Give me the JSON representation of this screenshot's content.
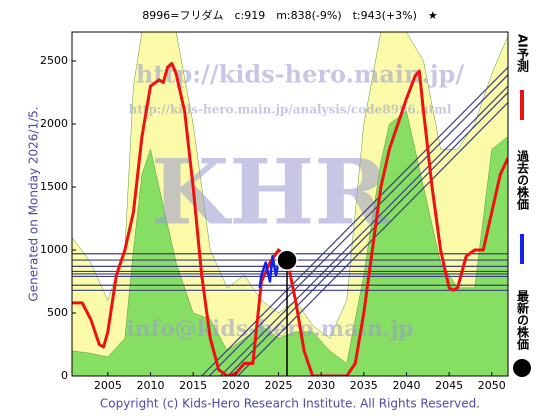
{
  "chart_data": {
    "type": "line",
    "title": "8996=フリダム　c:919　m:838(-9%)　t:943(+3%)　★",
    "y_label": "Generated on Monday 2026/1/5.",
    "footer": "Copyright (c) Kids-Hero Research Institute. All Rights Reserved.",
    "watermarks": [
      "http://kids-hero.main.jp/",
      "http://kids-hero.main.jp/analysis/code8996.html",
      "KHR",
      "info@kids-hero.main.jp"
    ],
    "xlim": [
      2000.8,
      2051.9
    ],
    "ylim": [
      0,
      2730
    ],
    "xticks": [
      2005,
      2010,
      2015,
      2020,
      2025,
      2030,
      2035,
      2040,
      2045,
      2050
    ],
    "yticks": [
      0,
      500,
      1000,
      1500,
      2000,
      2500
    ],
    "areas": [
      {
        "color": "#fafaa8",
        "x": [
          2000.8,
          2003,
          2005,
          2007,
          2008,
          2009,
          2010,
          2011,
          2012,
          2013,
          2015,
          2017,
          2019,
          2021,
          2023,
          2025,
          2027,
          2029,
          2031,
          2033,
          2035,
          2037,
          2038,
          2040,
          2042,
          2044,
          2046,
          2048,
          2050,
          2051.9
        ],
        "values": [
          1100,
          900,
          600,
          1000,
          2300,
          2730,
          2730,
          2730,
          2730,
          2730,
          2000,
          1000,
          700,
          800,
          600,
          500,
          600,
          400,
          300,
          600,
          2000,
          2730,
          2730,
          2730,
          2500,
          1800,
          1800,
          2000,
          2400,
          2700
        ]
      },
      {
        "color": "#86de62",
        "x": [
          2000.8,
          2003,
          2005,
          2007,
          2008,
          2009,
          2010,
          2011,
          2012,
          2013,
          2015,
          2017,
          2019,
          2021,
          2023,
          2025,
          2027,
          2029,
          2031,
          2033,
          2035,
          2037,
          2038,
          2040,
          2042,
          2044,
          2046,
          2048,
          2050,
          2051.9
        ],
        "values": [
          200,
          180,
          150,
          300,
          1000,
          1600,
          1800,
          1500,
          1200,
          900,
          500,
          450,
          200,
          300,
          400,
          300,
          350,
          350,
          200,
          100,
          800,
          1700,
          2000,
          2100,
          1500,
          900,
          700,
          700,
          1800,
          1900
        ]
      }
    ],
    "hlines": {
      "color": "#3a3f7f",
      "values": [
        680,
        720,
        790,
        810,
        830,
        870,
        920,
        970
      ]
    },
    "trend_lines": {
      "color": "#3a3f7f",
      "x": [
        2016,
        2051.9
      ],
      "series": [
        {
          "values": [
            0,
            2450
          ]
        },
        {
          "values": [
            -60,
            2390
          ]
        },
        {
          "values": [
            -150,
            2300
          ]
        },
        {
          "values": [
            -210,
            2250
          ]
        },
        {
          "values": [
            -290,
            2170
          ]
        }
      ]
    },
    "series": [
      {
        "name": "AI予測",
        "color": "#ee1111",
        "x": [
          2000.8,
          2002,
          2003,
          2004,
          2004.5,
          2005,
          2006,
          2007,
          2008,
          2009,
          2010,
          2011,
          2011.5,
          2012,
          2012.5,
          2013,
          2014,
          2015,
          2016,
          2017,
          2018,
          2019,
          2020,
          2021,
          2022,
          2023,
          2024,
          2025,
          2026,
          2027,
          2028,
          2029,
          2030,
          2033,
          2034,
          2035,
          2036,
          2037,
          2038,
          2039,
          2040,
          2041,
          2041.5,
          2042,
          2043,
          2044,
          2045,
          2045.5,
          2046,
          2047,
          2048,
          2049,
          2050,
          2051,
          2051.9
        ],
        "values": [
          580,
          580,
          450,
          250,
          230,
          350,
          800,
          1000,
          1300,
          1900,
          2300,
          2350,
          2330,
          2450,
          2480,
          2400,
          2100,
          1500,
          800,
          300,
          50,
          0,
          20,
          100,
          100,
          750,
          900,
          1000,
          930,
          600,
          200,
          0,
          0,
          0,
          100,
          500,
          1000,
          1500,
          1800,
          2000,
          2200,
          2380,
          2420,
          2100,
          1500,
          1000,
          700,
          680,
          700,
          950,
          1000,
          1000,
          1300,
          1600,
          1730
        ]
      },
      {
        "name": "過去の株価",
        "color": "#1122ee",
        "x": [
          2022.8,
          2023,
          2023.5,
          2024,
          2024.3,
          2024.7,
          2025,
          2025.5,
          2026
        ],
        "values": [
          700,
          800,
          900,
          750,
          950,
          800,
          900,
          850,
          919
        ]
      },
      {
        "name": "最新の株価",
        "color": "#000000",
        "x": [
          2026
        ],
        "values": [
          919
        ]
      }
    ]
  }
}
